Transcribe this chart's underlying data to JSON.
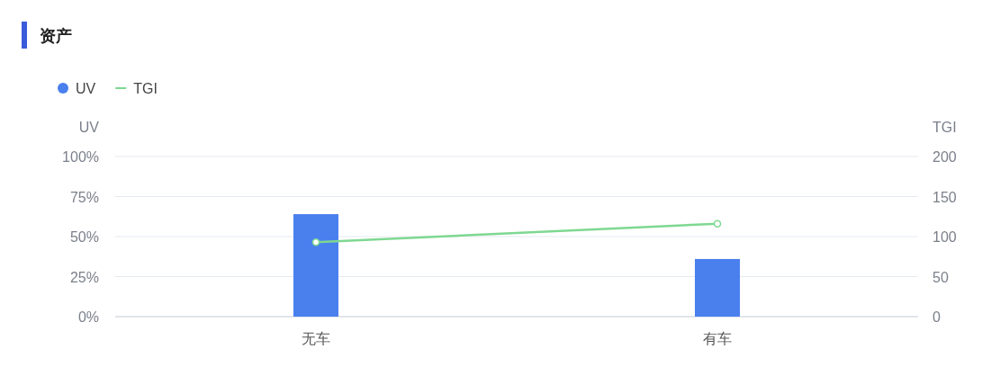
{
  "chart_data": {
    "type": "bar",
    "title": "资产",
    "categories": [
      "无车",
      "有车"
    ],
    "series": [
      {
        "name": "UV",
        "color": "#4a7fee",
        "values": [
          64,
          36
        ]
      },
      {
        "name": "TGI",
        "type": "line",
        "axis": "y2",
        "color": "#7ed891",
        "values": [
          93,
          116
        ]
      }
    ],
    "ylabel": "UV",
    "y2label": "TGI",
    "ylim": [
      0,
      100
    ],
    "yticks": [
      {
        "value": 0,
        "label": "0%"
      },
      {
        "value": 25,
        "label": "25%"
      },
      {
        "value": 50,
        "label": "50%"
      },
      {
        "value": 75,
        "label": "75%"
      },
      {
        "value": 100,
        "label": "100%"
      }
    ],
    "y2lim": [
      0,
      200
    ],
    "y2ticks": [
      0,
      50,
      100,
      150,
      200
    ],
    "grid": "y",
    "legend": "top left",
    "marker": "circle"
  }
}
